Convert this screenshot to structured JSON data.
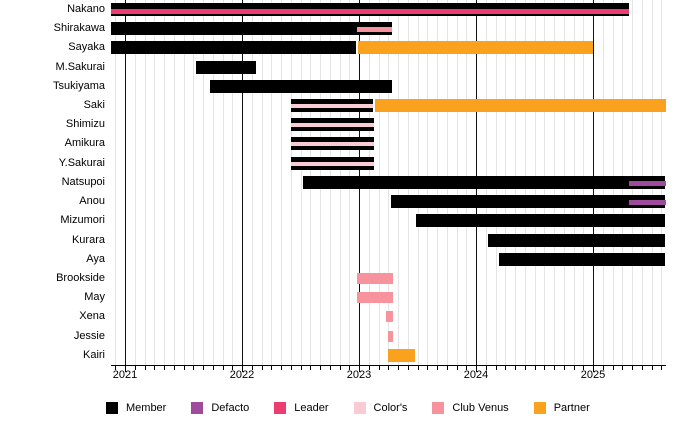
{
  "chart_data": {
    "type": "gantt",
    "title": "",
    "x_axis": {
      "min": 2020.88,
      "max": 2025.62,
      "year_ticks": [
        "2021",
        "2022",
        "2023",
        "2024",
        "2025"
      ],
      "minor_tick_interval": "month",
      "grid": true
    },
    "colors": {
      "member": "#000000",
      "defacto": "#9e4b9d",
      "leader": "#ec3d72",
      "colors": "#f9cbd4",
      "club_venus": "#f7939d",
      "partner": "#faa11e"
    },
    "legend": [
      {
        "label": "Member",
        "role": "member"
      },
      {
        "label": "Defacto",
        "role": "defacto"
      },
      {
        "label": "Leader",
        "role": "leader"
      },
      {
        "label": "Color's",
        "role": "colors"
      },
      {
        "label": "Club Venus",
        "role": "club_venus"
      },
      {
        "label": "Partner",
        "role": "partner"
      }
    ],
    "rows": [
      {
        "name": "Nakano",
        "segments": [
          {
            "role": "member",
            "start": 2020.88,
            "end": 2025.31,
            "layer": "base"
          },
          {
            "role": "leader",
            "start": 2020.88,
            "end": 2025.31,
            "layer": "overlay"
          }
        ]
      },
      {
        "name": "Shirakawa",
        "segments": [
          {
            "role": "member",
            "start": 2020.88,
            "end": 2023.28,
            "layer": "base"
          },
          {
            "role": "club_venus",
            "start": 2022.98,
            "end": 2023.28,
            "layer": "overlay"
          }
        ]
      },
      {
        "name": "Sayaka",
        "segments": [
          {
            "role": "member",
            "start": 2020.88,
            "end": 2022.97,
            "layer": "base"
          },
          {
            "role": "partner",
            "start": 2022.99,
            "end": 2025.0,
            "layer": "base"
          }
        ]
      },
      {
        "name": "M.Sakurai",
        "segments": [
          {
            "role": "member",
            "start": 2021.61,
            "end": 2022.12,
            "layer": "base"
          }
        ]
      },
      {
        "name": "Tsukiyama",
        "segments": [
          {
            "role": "member",
            "start": 2021.73,
            "end": 2023.28,
            "layer": "base"
          }
        ]
      },
      {
        "name": "Saki",
        "segments": [
          {
            "role": "member",
            "start": 2022.42,
            "end": 2023.12,
            "layer": "base"
          },
          {
            "role": "colors",
            "start": 2022.42,
            "end": 2023.12,
            "layer": "overlay"
          },
          {
            "role": "partner",
            "start": 2023.14,
            "end": 2025.62,
            "layer": "base"
          }
        ]
      },
      {
        "name": "Shimizu",
        "segments": [
          {
            "role": "member",
            "start": 2022.42,
            "end": 2023.13,
            "layer": "base"
          },
          {
            "role": "colors",
            "start": 2022.42,
            "end": 2023.13,
            "layer": "overlay"
          }
        ]
      },
      {
        "name": "Amikura",
        "segments": [
          {
            "role": "member",
            "start": 2022.42,
            "end": 2023.13,
            "layer": "base"
          },
          {
            "role": "colors",
            "start": 2022.42,
            "end": 2023.13,
            "layer": "overlay"
          }
        ]
      },
      {
        "name": "Y.Sakurai",
        "segments": [
          {
            "role": "member",
            "start": 2022.42,
            "end": 2023.13,
            "layer": "base"
          },
          {
            "role": "colors",
            "start": 2022.42,
            "end": 2023.13,
            "layer": "overlay"
          }
        ]
      },
      {
        "name": "Natsupoi",
        "segments": [
          {
            "role": "member",
            "start": 2022.52,
            "end": 2025.62,
            "layer": "base"
          },
          {
            "role": "defacto",
            "start": 2025.31,
            "end": 2025.62,
            "layer": "overlay"
          }
        ]
      },
      {
        "name": "Anou",
        "segments": [
          {
            "role": "member",
            "start": 2023.27,
            "end": 2025.62,
            "layer": "base"
          },
          {
            "role": "defacto",
            "start": 2025.31,
            "end": 2025.62,
            "layer": "overlay"
          }
        ]
      },
      {
        "name": "Mizumori",
        "segments": [
          {
            "role": "member",
            "start": 2023.49,
            "end": 2025.62,
            "layer": "base"
          }
        ]
      },
      {
        "name": "Kurara",
        "segments": [
          {
            "role": "member",
            "start": 2024.1,
            "end": 2025.62,
            "layer": "base"
          }
        ]
      },
      {
        "name": "Aya",
        "segments": [
          {
            "role": "member",
            "start": 2024.2,
            "end": 2025.62,
            "layer": "base"
          }
        ]
      },
      {
        "name": "Brookside",
        "segments": [
          {
            "role": "club_venus",
            "start": 2022.98,
            "end": 2023.29,
            "layer": "short"
          }
        ]
      },
      {
        "name": "May",
        "segments": [
          {
            "role": "club_venus",
            "start": 2022.98,
            "end": 2023.29,
            "layer": "short"
          }
        ]
      },
      {
        "name": "Xena",
        "segments": [
          {
            "role": "club_venus",
            "start": 2023.23,
            "end": 2023.29,
            "layer": "short"
          }
        ]
      },
      {
        "name": "Jessie",
        "segments": [
          {
            "role": "club_venus",
            "start": 2023.25,
            "end": 2023.29,
            "layer": "short"
          }
        ]
      },
      {
        "name": "Kairi",
        "segments": [
          {
            "role": "partner",
            "start": 2023.25,
            "end": 2023.48,
            "layer": "base"
          }
        ]
      }
    ]
  }
}
